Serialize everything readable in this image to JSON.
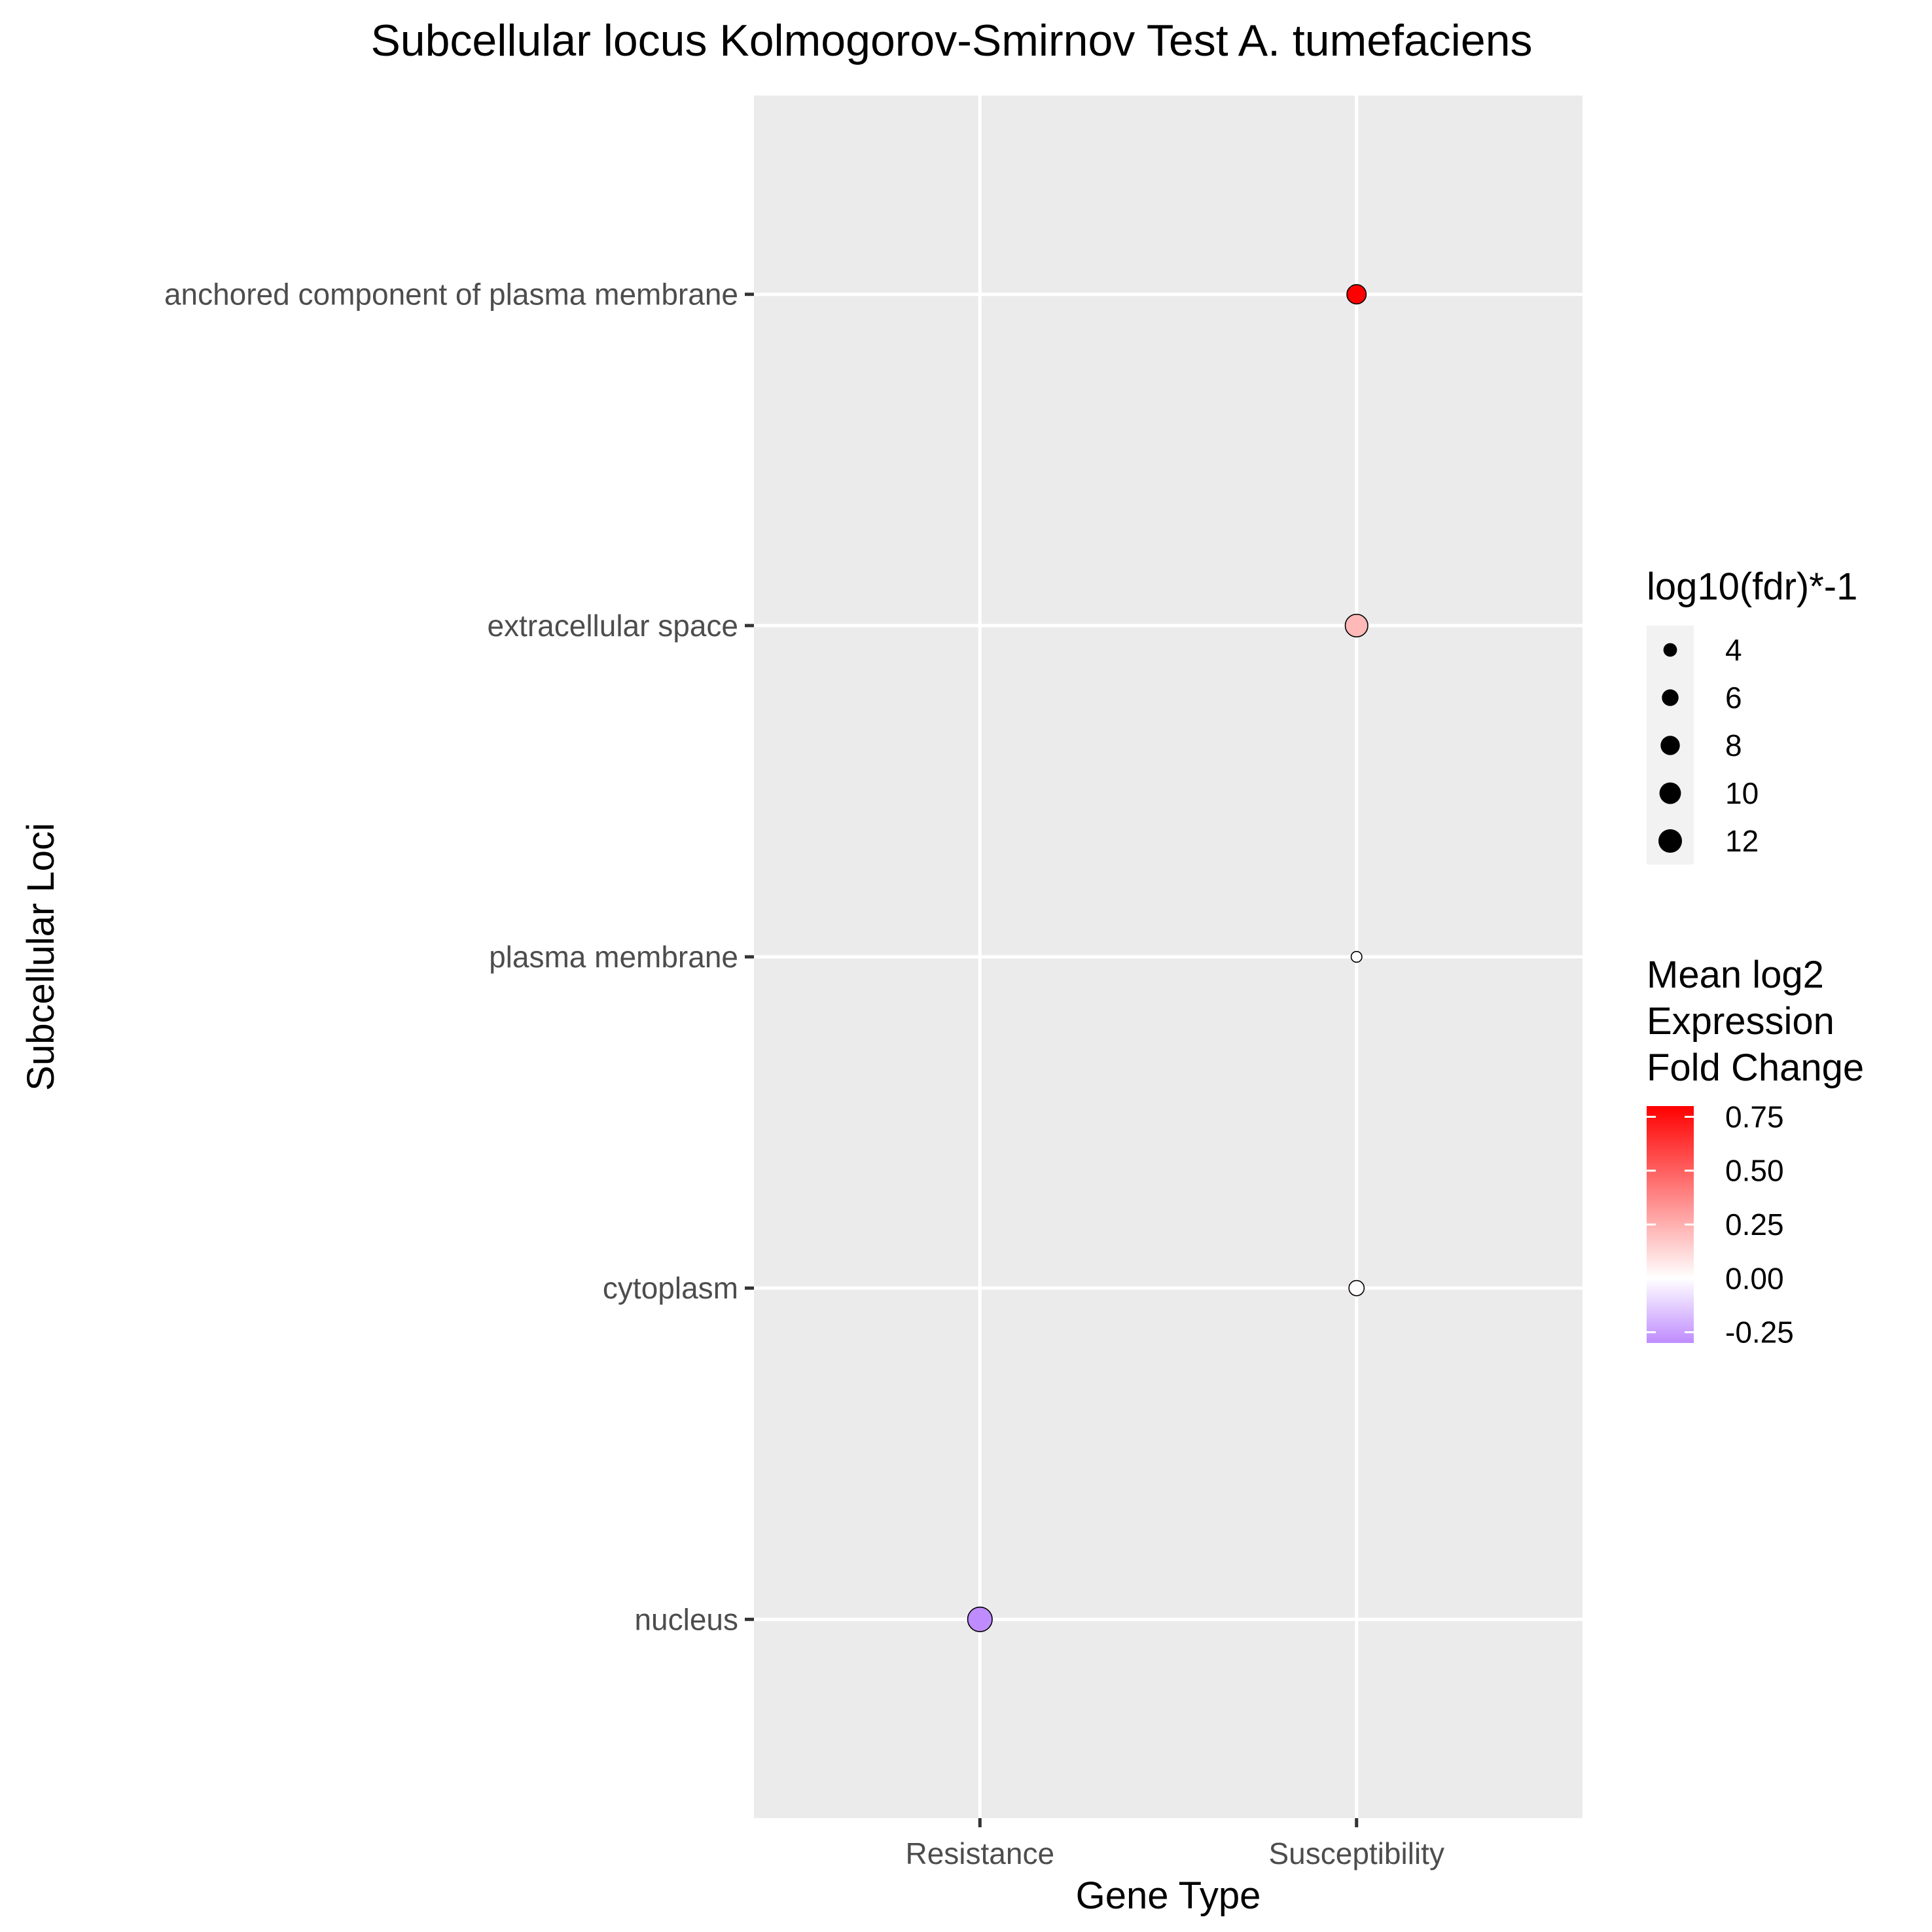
{
  "chart_data": {
    "type": "scatter",
    "title": "Subcellular locus Kolmogorov-Smirnov Test A. tumefaciens",
    "xlabel": "Gene Type",
    "ylabel": "Subcellular Loci",
    "x_categories": [
      "Resistance",
      "Susceptibility"
    ],
    "y_categories": [
      "anchored component of plasma membrane",
      "extracellular space",
      "plasma membrane",
      "cytoplasm",
      "nucleus"
    ],
    "grid": true,
    "points": [
      {
        "x": "Susceptibility",
        "y": "anchored component of plasma membrane",
        "size": 8,
        "color_value": 0.8
      },
      {
        "x": "Susceptibility",
        "y": "extracellular space",
        "size": 11,
        "color_value": 0.22
      },
      {
        "x": "Susceptibility",
        "y": "plasma membrane",
        "size": 2.5,
        "color_value": 0.0
      },
      {
        "x": "Susceptibility",
        "y": "cytoplasm",
        "size": 5,
        "color_value": 0.01
      },
      {
        "x": "Resistance",
        "y": "nucleus",
        "size": 13,
        "color_value": -0.3
      }
    ],
    "size_legend": {
      "title": "log10(fdr)*-1",
      "values": [
        4,
        6,
        8,
        10,
        12
      ],
      "labels": [
        "4",
        "6",
        "8",
        "10",
        "12"
      ]
    },
    "color_legend": {
      "title_lines": [
        "Mean log2",
        "Expression",
        "Fold Change"
      ],
      "values": [
        0.75,
        0.5,
        0.25,
        0.0,
        -0.25
      ],
      "labels": [
        "0.75",
        "0.50",
        "0.25",
        "0.00",
        "-0.25"
      ],
      "range": [
        -0.3,
        0.8
      ],
      "low_color": "#bf8cff",
      "mid_color": "#ffffff",
      "high_color": "#ff0000"
    },
    "panel_background": "#ebebeb",
    "grid_color": "#ffffff",
    "legend_position": "right"
  }
}
